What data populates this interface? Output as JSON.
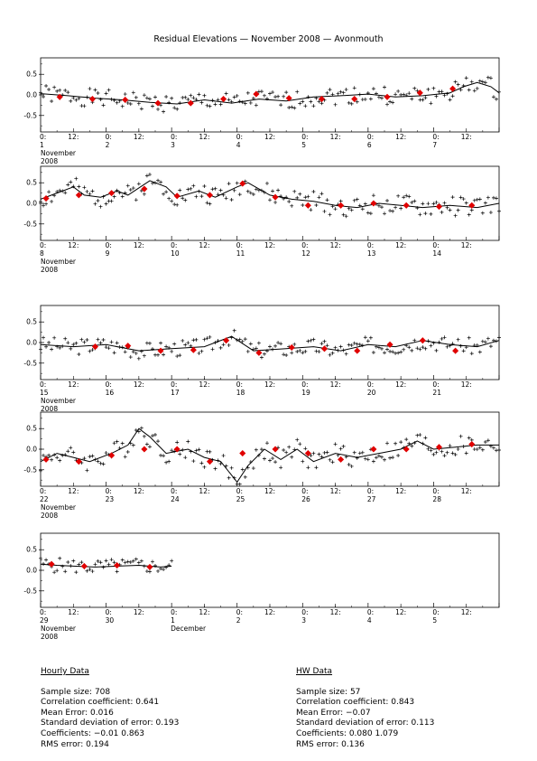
{
  "title": "Residual Elevations — November 2008 — Avonmouth",
  "chart_data": [
    {
      "type": "line",
      "ylim": [
        -0.9,
        0.9
      ],
      "yticks": [
        "0.5",
        "0.0",
        "-0.5"
      ],
      "day_labels": [
        "1",
        "2",
        "3",
        "4",
        "5",
        "6",
        "7"
      ],
      "month_label": "November",
      "year_label": "2008",
      "hours": 168,
      "model": [
        [
          0,
          0.03
        ],
        [
          10,
          -0.02
        ],
        [
          20,
          -0.08
        ],
        [
          30,
          -0.12
        ],
        [
          40,
          -0.18
        ],
        [
          50,
          -0.22
        ],
        [
          60,
          -0.12
        ],
        [
          70,
          -0.2
        ],
        [
          80,
          -0.1
        ],
        [
          90,
          -0.15
        ],
        [
          100,
          -0.05
        ],
        [
          110,
          -0.02
        ],
        [
          120,
          0.02
        ],
        [
          130,
          -0.05
        ],
        [
          140,
          -0.02
        ],
        [
          150,
          0.05
        ],
        [
          155,
          0.2
        ],
        [
          160,
          0.3
        ],
        [
          165,
          0.2
        ],
        [
          168,
          0.05
        ]
      ],
      "hw": [
        [
          7,
          -0.05
        ],
        [
          19,
          -0.1
        ],
        [
          31,
          -0.12
        ],
        [
          43,
          -0.2
        ],
        [
          55,
          -0.2
        ],
        [
          67,
          -0.1
        ],
        [
          79,
          0.02
        ],
        [
          91,
          -0.08
        ],
        [
          103,
          -0.1
        ],
        [
          115,
          -0.1
        ],
        [
          127,
          -0.05
        ],
        [
          139,
          0.05
        ],
        [
          151,
          0.15
        ]
      ],
      "scatter_seed": 1,
      "scatter_spread": 0.22
    },
    {
      "type": "line",
      "ylim": [
        -0.9,
        0.9
      ],
      "yticks": [
        "0.5",
        "0.0",
        "-0.5"
      ],
      "day_labels": [
        "8",
        "9",
        "10",
        "11",
        "12",
        "13",
        "14"
      ],
      "month_label": "November",
      "year_label": "2008",
      "hours": 168,
      "model": [
        [
          0,
          0.1
        ],
        [
          6,
          0.25
        ],
        [
          12,
          0.4
        ],
        [
          16,
          0.2
        ],
        [
          22,
          0.15
        ],
        [
          28,
          0.3
        ],
        [
          32,
          0.2
        ],
        [
          40,
          0.55
        ],
        [
          46,
          0.4
        ],
        [
          50,
          0.15
        ],
        [
          58,
          0.3
        ],
        [
          64,
          0.15
        ],
        [
          72,
          0.4
        ],
        [
          76,
          0.5
        ],
        [
          84,
          0.2
        ],
        [
          92,
          0.1
        ],
        [
          100,
          0.05
        ],
        [
          108,
          -0.05
        ],
        [
          116,
          -0.1
        ],
        [
          124,
          0.0
        ],
        [
          132,
          -0.05
        ],
        [
          140,
          -0.1
        ],
        [
          150,
          -0.05
        ],
        [
          160,
          -0.1
        ],
        [
          168,
          0.0
        ]
      ],
      "hw": [
        [
          2,
          0.12
        ],
        [
          14,
          0.2
        ],
        [
          26,
          0.25
        ],
        [
          38,
          0.35
        ],
        [
          50,
          0.18
        ],
        [
          62,
          0.2
        ],
        [
          74,
          0.48
        ],
        [
          86,
          0.15
        ],
        [
          98,
          -0.05
        ],
        [
          110,
          -0.05
        ],
        [
          122,
          0.0
        ],
        [
          134,
          -0.05
        ],
        [
          146,
          -0.08
        ],
        [
          158,
          -0.05
        ]
      ],
      "scatter_seed": 2,
      "scatter_spread": 0.25
    },
    {
      "type": "line",
      "ylim": [
        -0.9,
        0.9
      ],
      "yticks": [
        "0.5",
        "0.0",
        "-0.5"
      ],
      "day_labels": [
        "15",
        "16",
        "17",
        "18",
        "19",
        "20",
        "21"
      ],
      "month_label": "November",
      "year_label": "2008",
      "hours": 168,
      "model": [
        [
          0,
          -0.05
        ],
        [
          12,
          -0.1
        ],
        [
          24,
          -0.05
        ],
        [
          36,
          -0.2
        ],
        [
          48,
          -0.15
        ],
        [
          60,
          -0.1
        ],
        [
          70,
          0.15
        ],
        [
          78,
          -0.2
        ],
        [
          90,
          -0.15
        ],
        [
          100,
          -0.1
        ],
        [
          110,
          -0.2
        ],
        [
          120,
          -0.05
        ],
        [
          130,
          -0.1
        ],
        [
          140,
          0.05
        ],
        [
          150,
          -0.05
        ],
        [
          160,
          -0.1
        ],
        [
          168,
          0.05
        ]
      ],
      "hw": [
        [
          20,
          -0.1
        ],
        [
          32,
          -0.08
        ],
        [
          44,
          -0.2
        ],
        [
          56,
          -0.18
        ],
        [
          68,
          0.05
        ],
        [
          80,
          -0.25
        ],
        [
          92,
          -0.12
        ],
        [
          104,
          -0.15
        ],
        [
          116,
          -0.2
        ],
        [
          128,
          -0.05
        ],
        [
          140,
          0.05
        ],
        [
          152,
          -0.2
        ]
      ],
      "scatter_seed": 3,
      "scatter_spread": 0.2
    },
    {
      "type": "line",
      "ylim": [
        -0.9,
        0.9
      ],
      "yticks": [
        "0.5",
        "0.0",
        "-0.5"
      ],
      "day_labels": [
        "22",
        "23",
        "24",
        "25",
        "26",
        "27",
        "28"
      ],
      "month_label": "November",
      "year_label": "2008",
      "hours": 168,
      "model": [
        [
          0,
          -0.3
        ],
        [
          6,
          -0.1
        ],
        [
          12,
          -0.2
        ],
        [
          18,
          -0.3
        ],
        [
          26,
          -0.1
        ],
        [
          32,
          0.1
        ],
        [
          36,
          0.5
        ],
        [
          40,
          0.3
        ],
        [
          46,
          -0.1
        ],
        [
          54,
          0.0
        ],
        [
          60,
          -0.2
        ],
        [
          66,
          -0.3
        ],
        [
          72,
          -0.8
        ],
        [
          76,
          -0.4
        ],
        [
          82,
          0.0
        ],
        [
          88,
          -0.25
        ],
        [
          94,
          0.0
        ],
        [
          100,
          -0.3
        ],
        [
          108,
          -0.1
        ],
        [
          116,
          -0.2
        ],
        [
          124,
          -0.1
        ],
        [
          132,
          0.0
        ],
        [
          138,
          0.2
        ],
        [
          144,
          0.0
        ],
        [
          152,
          0.05
        ],
        [
          160,
          0.1
        ],
        [
          168,
          0.1
        ]
      ],
      "hw": [
        [
          2,
          -0.25
        ],
        [
          14,
          -0.3
        ],
        [
          26,
          -0.15
        ],
        [
          38,
          0.0
        ],
        [
          50,
          0.0
        ],
        [
          62,
          -0.3
        ],
        [
          74,
          -0.1
        ],
        [
          86,
          0.0
        ],
        [
          98,
          -0.1
        ],
        [
          110,
          -0.25
        ],
        [
          122,
          0.0
        ],
        [
          134,
          0.0
        ],
        [
          146,
          0.05
        ],
        [
          158,
          0.12
        ]
      ],
      "scatter_seed": 4,
      "scatter_spread": 0.25
    },
    {
      "type": "line",
      "ylim": [
        -0.9,
        0.9
      ],
      "yticks": [
        "0.5",
        "0.0",
        "-0.5"
      ],
      "day_labels": [
        "29",
        "30",
        "1",
        "2",
        "3",
        "4",
        "5"
      ],
      "month_label": "November",
      "month2_label": "December",
      "month2_index": 2,
      "year_label": "2008",
      "hours": 168,
      "data_hours": 48,
      "model": [
        [
          0,
          0.15
        ],
        [
          6,
          0.12
        ],
        [
          12,
          0.1
        ],
        [
          20,
          0.08
        ],
        [
          28,
          0.1
        ],
        [
          36,
          0.12
        ],
        [
          44,
          0.08
        ],
        [
          48,
          0.1
        ]
      ],
      "hw": [
        [
          4,
          0.15
        ],
        [
          16,
          0.1
        ],
        [
          28,
          0.12
        ],
        [
          40,
          0.08
        ]
      ],
      "scatter_seed": 5,
      "scatter_spread": 0.18
    }
  ],
  "stats": {
    "hourly": {
      "heading": "Hourly Data",
      "lines": [
        "Sample size: 708",
        "Correlation coefficient: 0.641",
        "Mean Error: 0.016",
        "Standard deviation of error: 0.193",
        "Coefficients: −0.01    0.863",
        "RMS error: 0.194"
      ]
    },
    "hw": {
      "heading": "HW Data",
      "lines": [
        "Sample size: 57",
        "Correlation coefficient: 0.843",
        "Mean Error: −0.07",
        "Standard deviation of error: 0.113",
        "Coefficients: 0.080    1.079",
        "RMS error: 0.136"
      ]
    }
  }
}
